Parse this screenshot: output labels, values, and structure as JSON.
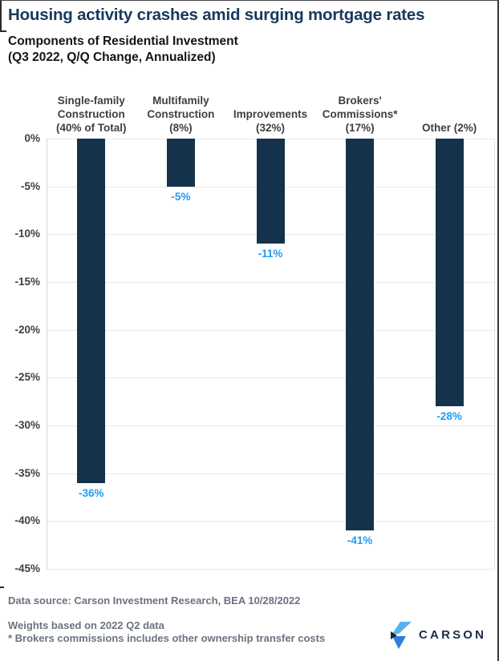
{
  "header": {
    "title": "Housing activity crashes amid surging mortgage rates",
    "subtitle_line1": "Components of Residential Investment",
    "subtitle_line2": "(Q3 2022, Q/Q Change, Annualized)"
  },
  "chart_data": {
    "type": "bar",
    "title": "Components of Residential Investment",
    "subtitle": "(Q3 2022, Q/Q Change, Annualized)",
    "categories": [
      "Single-family Construction (40% of Total)",
      "Multifamily Construction (8%)",
      "Improvements (32%)",
      "Brokers' Commissions* (17%)",
      "Other (2%)"
    ],
    "category_label_lines": [
      [
        "Single-family",
        "Construction",
        "(40% of Total)"
      ],
      [
        "Multifamily",
        "Construction",
        "(8%)"
      ],
      [
        "Improvements",
        "(32%)"
      ],
      [
        "Brokers'",
        "Commissions*",
        "(17%)"
      ],
      [
        "Other (2%)"
      ]
    ],
    "values": [
      -36,
      -5,
      -11,
      -41,
      -28
    ],
    "value_labels": [
      "-36%",
      "-5%",
      "-11%",
      "-41%",
      "-28%"
    ],
    "ylim": [
      -45,
      0
    ],
    "ytick_step": -5,
    "ytick_labels": [
      "0%",
      "-5%",
      "-10%",
      "-15%",
      "-20%",
      "-25%",
      "-30%",
      "-35%",
      "-40%",
      "-45%"
    ],
    "xlabel": "",
    "ylabel": "",
    "grid": "horizontal",
    "legend": "none"
  },
  "footer": {
    "source_line": "Data source: Carson Investment Research, BEA   10/28/2022",
    "note_line1": "Weights based on 2022 Q2 data",
    "note_line2": "* Brokers commissions includes other ownership transfer costs"
  },
  "logo": {
    "text": "CARSON"
  },
  "colors": {
    "title_navy": "#18395c",
    "bar_navy": "#14324b",
    "value_label_blue": "#1e9df2",
    "axis_text_gray": "#3f3f3f",
    "footer_gray": "#6b7280",
    "gridline_gray": "#e9e9e9",
    "logo_navy": "#1c2b4a",
    "logo_light_blue": "#55b3f0",
    "logo_mid_blue": "#2e7fd9",
    "logo_dark_arrow": "#132c44"
  }
}
